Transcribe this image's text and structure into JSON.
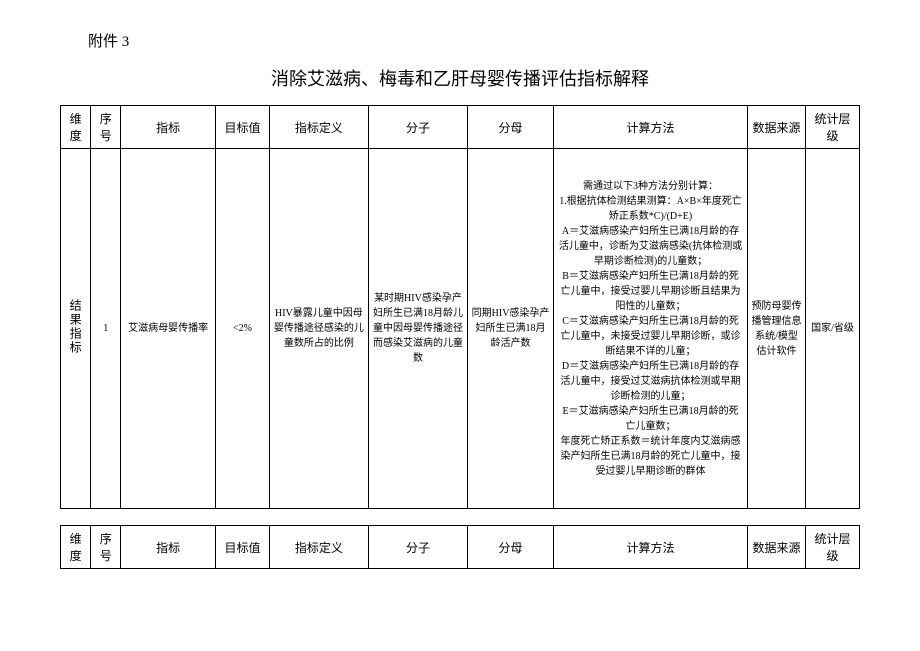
{
  "attachment_label": "附件 3",
  "title": "消除艾滋病、梅毒和乙肝母婴传播评估指标解释",
  "headers": {
    "dimension": "维度",
    "seq": "序号",
    "indicator": "指标",
    "target": "目标值",
    "definition": "指标定义",
    "numerator": "分子",
    "denominator": "分母",
    "calc": "计算方法",
    "source": "数据来源",
    "level": "统计层级"
  },
  "row1": {
    "dimension": "结果指标",
    "seq": "1",
    "indicator": "艾滋病母婴传播率",
    "target": "<2%",
    "definition": "HIV暴露儿童中因母婴传播途径感染的儿童数所占的比例",
    "numerator": "某时期HIV感染孕产妇所生已满18月龄儿童中因母婴传播途径而感染艾滋病的儿童数",
    "denominator": "同期HIV感染孕产妇所生已满18月龄活产数",
    "calc": "需通过以下3种方法分别计算：\n1.根据抗体检测结果测算：A×B×年度死亡矫正系数*C)/(D+E)\nA＝艾滋病感染产妇所生已满18月龄的存活儿童中，诊断为艾滋病感染(抗体检测或早期诊断检测)的儿童数；\nB＝艾滋病感染产妇所生已满18月龄的死亡儿童中，接受过婴儿早期诊断且结果为阳性的儿童数；\nC＝艾滋病感染产妇所生已满18月龄的死亡儿童中，未接受过婴儿早期诊断，或诊断结果不详的儿童；\nD＝艾滋病感染产妇所生已满18月龄的存活儿童中，接受过艾滋病抗体检测或早期诊断检测的儿童；\nE＝艾滋病感染产妇所生已满18月龄的死亡儿童数；\n年度死亡矫正系数＝统计年度内艾滋病感染产妇所生已满18月龄的死亡儿童中，接受过婴儿早期诊断的群体",
    "source": "预防母婴传播管理信息系统/模型估计软件",
    "level": "国家/省级"
  }
}
